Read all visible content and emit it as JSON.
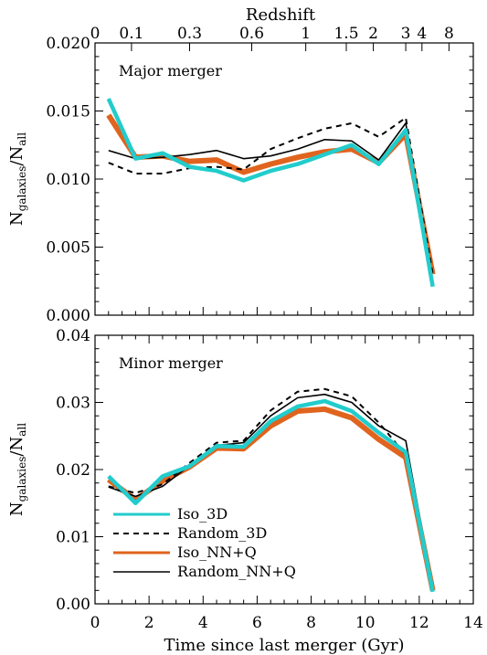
{
  "chart_data": [
    {
      "type": "line",
      "panel_label": "Major merger",
      "top_axis_label": "Redshift",
      "top_tick_labels": [
        {
          "label": "0",
          "x": 0.0
        },
        {
          "label": "0.1",
          "x": 1.35
        },
        {
          "label": "0.3",
          "x": 3.5
        },
        {
          "label": "0.6",
          "x": 5.8
        },
        {
          "label": "1",
          "x": 7.8
        },
        {
          "label": "1.5",
          "x": 9.3
        },
        {
          "label": "2",
          "x": 10.3
        },
        {
          "label": "3",
          "x": 11.5
        },
        {
          "label": "4",
          "x": 12.1
        },
        {
          "label": "8",
          "x": 13.1
        }
      ],
      "ylabel_main": "N",
      "ylabel_sub_top": "galaxies",
      "ylabel_slash": "/N",
      "ylabel_sub_bottom": "all",
      "xlim": [
        0,
        14
      ],
      "ylim": [
        0,
        0.02
      ],
      "y_ticks": [
        0.0,
        0.005,
        0.01,
        0.015,
        0.02
      ],
      "y_tick_labels": [
        "0.000",
        "0.005",
        "0.010",
        "0.015",
        "0.020"
      ],
      "x": [
        0.5,
        1.5,
        2.5,
        3.5,
        4.5,
        5.5,
        6.5,
        7.5,
        8.5,
        9.5,
        10.5,
        11.5,
        12.5
      ],
      "series": [
        {
          "name": "Iso_NN+Q",
          "color": "#e0641e",
          "values": [
            0.0147,
            0.0116,
            0.0117,
            0.0113,
            0.0114,
            0.0105,
            0.0111,
            0.0116,
            0.012,
            0.0122,
            0.0112,
            0.0133,
            0.003
          ]
        },
        {
          "name": "Random_3D",
          "color": "#000000",
          "values": [
            0.0112,
            0.0104,
            0.0104,
            0.0108,
            0.0109,
            0.0107,
            0.0122,
            0.013,
            0.0137,
            0.0141,
            0.0131,
            0.0145,
            0.003
          ]
        },
        {
          "name": "Random_NN+Q",
          "color": "#000000",
          "values": [
            0.0121,
            0.0115,
            0.0116,
            0.0118,
            0.0121,
            0.0115,
            0.0117,
            0.0122,
            0.0129,
            0.0128,
            0.0114,
            0.0141,
            0.0025
          ]
        },
        {
          "name": "Iso_3D",
          "color": "#22cccc",
          "values": [
            0.0159,
            0.0115,
            0.0119,
            0.0109,
            0.0106,
            0.0099,
            0.0106,
            0.0111,
            0.0118,
            0.0125,
            0.0111,
            0.0136,
            0.0021
          ]
        }
      ]
    },
    {
      "type": "line",
      "panel_label": "Minor merger",
      "ylabel_main": "N",
      "ylabel_sub_top": "galaxies",
      "ylabel_slash": "/N",
      "ylabel_sub_bottom": "all",
      "xlabel": "Time since last merger (Gyr)",
      "xlim": [
        0,
        14
      ],
      "ylim": [
        0,
        0.04
      ],
      "x_ticks": [
        0,
        2,
        4,
        6,
        8,
        10,
        12,
        14
      ],
      "x_tick_labels": [
        "0",
        "2",
        "4",
        "6",
        "8",
        "10",
        "12",
        "14"
      ],
      "y_ticks": [
        0.0,
        0.01,
        0.02,
        0.03,
        0.04
      ],
      "y_tick_labels": [
        "0.00",
        "0.01",
        "0.02",
        "0.03",
        "0.04"
      ],
      "legend_position": "bottom-left",
      "x": [
        0.5,
        1.5,
        2.5,
        3.5,
        4.5,
        5.5,
        6.5,
        7.5,
        8.5,
        9.5,
        10.5,
        11.5,
        12.5
      ],
      "series": [
        {
          "name": "Iso_NN+Q",
          "color": "#e0641e",
          "values": [
            0.0185,
            0.0155,
            0.0183,
            0.0204,
            0.0232,
            0.0231,
            0.0265,
            0.0287,
            0.029,
            0.0277,
            0.0245,
            0.0218,
            0.002
          ]
        },
        {
          "name": "Random_3D",
          "color": "#000000",
          "values": [
            0.0175,
            0.0165,
            0.0178,
            0.021,
            0.024,
            0.0243,
            0.0288,
            0.0316,
            0.032,
            0.0309,
            0.027,
            0.0222,
            0.0015
          ]
        },
        {
          "name": "Random_NN+Q",
          "color": "#000000",
          "values": [
            0.0174,
            0.016,
            0.0175,
            0.0206,
            0.0236,
            0.024,
            0.028,
            0.0307,
            0.0312,
            0.03,
            0.0265,
            0.0243,
            0.0022
          ]
        },
        {
          "name": "Iso_3D",
          "color": "#22cccc",
          "values": [
            0.019,
            0.015,
            0.019,
            0.0205,
            0.0235,
            0.0234,
            0.0272,
            0.0294,
            0.0302,
            0.0287,
            0.0255,
            0.0226,
            0.0018
          ]
        }
      ],
      "legend": [
        {
          "name": "Iso_3D",
          "color": "#22cccc",
          "style": "solid-thick"
        },
        {
          "name": "Random_3D",
          "color": "#000000",
          "style": "dashed"
        },
        {
          "name": "Iso_NN+Q",
          "color": "#e0641e",
          "style": "solid-medium"
        },
        {
          "name": "Random_NN+Q",
          "color": "#000000",
          "style": "solid-thin"
        }
      ]
    }
  ]
}
